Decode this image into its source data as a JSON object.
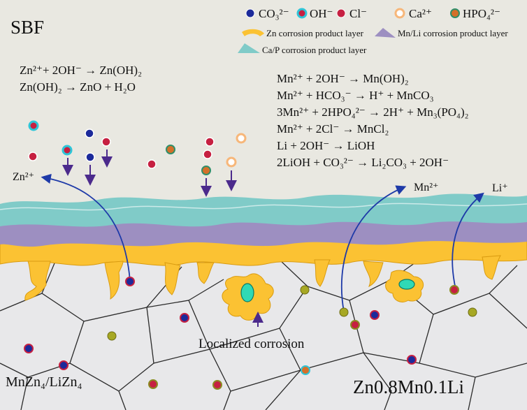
{
  "labels": {
    "environment": "SBF",
    "substrate": "MnZn₄/LiZn₄",
    "alloy": "Zn0.8Mn0.1Li",
    "localized": "Localized corrosion",
    "zn_ion": "Zn²⁺",
    "mn_ion": "Mn²⁺",
    "li_ion": "Li⁺"
  },
  "legend": {
    "ions": [
      "CO₃²⁻",
      "OH⁻",
      "Cl⁻",
      "Ca²⁺",
      "HPO₄²⁻"
    ],
    "layers": [
      "Zn corrosion product layer",
      "Mn/Li corrosion product layer",
      "Ca/P corrosion product layer"
    ]
  },
  "reactions_zn": [
    "Zn²⁺+ 2OH⁻ → Zn(OH)₂",
    "Zn(OH)₂ → ZnO + H₂O"
  ],
  "reactions_mn_li": [
    "Mn²⁺ + 2OH⁻ → Mn(OH)₂",
    "Mn²⁺ + HCO₃⁻ → H⁺ + MnCO₃",
    "3Mn²⁺ + 2HPO₄²⁻ → 2H⁺ + Mn₃(PO₄)₂",
    "Mn²⁺ + 2Cl⁻ → MnCl₂",
    "Li + 2OH⁻ → LiOH",
    "2LiOH + CO₃²⁻ → Li₂CO₃ + 2OH⁻"
  ],
  "colors": {
    "solution_bg": "#e9e8e1",
    "substrate_bg": "#e8e8ea",
    "ca_p_layer": "#80cbc8",
    "mn_li_layer": "#9d8fc1",
    "zn_layer": "#fbc233",
    "co3": "#1c2a9a",
    "oh": "#2ec5d8",
    "cl": "#c62041",
    "ca": "#f7b77a",
    "hpo4": "#d4702a",
    "mn_particle": "#a7a824"
  }
}
